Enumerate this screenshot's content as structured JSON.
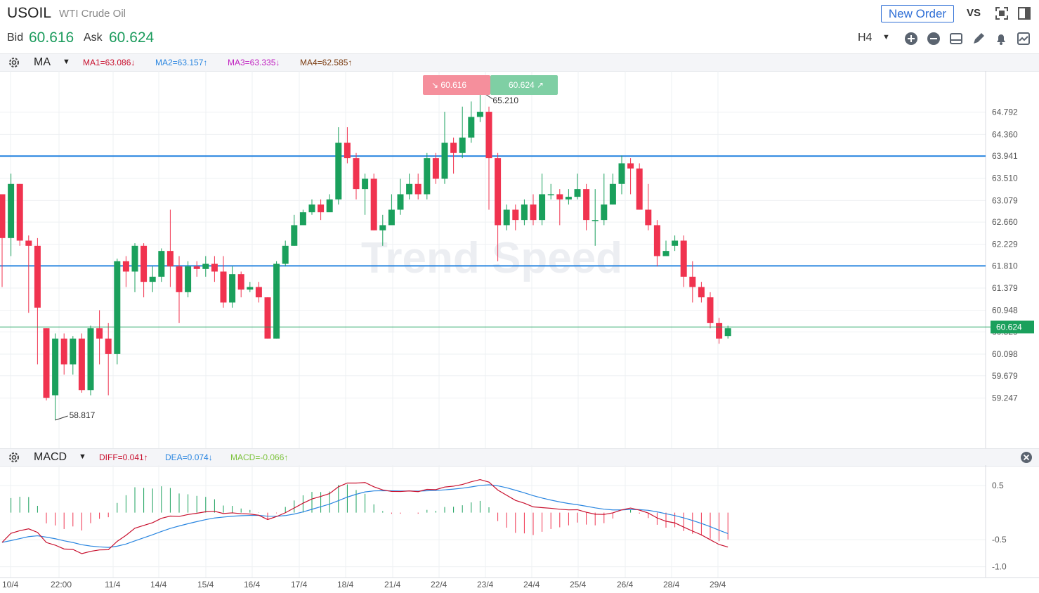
{
  "header": {
    "symbol": "USOIL",
    "symbol_name": "WTI Crude Oil",
    "bid_label": "Bid",
    "bid_value": "60.616",
    "ask_label": "Ask",
    "ask_value": "60.624",
    "new_order_label": "New Order",
    "vs_label": "VS",
    "timeframe": "H4"
  },
  "ma_bar": {
    "name": "MA",
    "ma1": "MA1=63.086↓",
    "ma2": "MA2=63.157↑",
    "ma3": "MA3=63.335↓",
    "ma4": "MA4=62.585↑",
    "colors": {
      "ma1": "#c8102e",
      "ma2": "#2a86e0",
      "ma3": "#c020c0",
      "ma4": "#7a3b10"
    }
  },
  "macd_bar": {
    "name": "MACD",
    "diff": "DIFF=0.041↑",
    "dea": "DEA=0.074↓",
    "macd": "MACD=-0.066↑",
    "colors": {
      "diff": "#c8102e",
      "dea": "#2a86e0",
      "macd": "#7cc23b"
    }
  },
  "price_axis": [
    "64.792",
    "64.360",
    "63.941",
    "63.510",
    "63.079",
    "62.660",
    "62.229",
    "61.810",
    "61.379",
    "60.948",
    "60.529",
    "60.098",
    "59.679",
    "59.247"
  ],
  "current_price": "60.624",
  "high_label": "65.210",
  "low_label": "58.817",
  "sell_box": "60.616",
  "buy_box": "60.624",
  "watermark": "Trend Speed",
  "macd_axis": [
    "0.5",
    "-0.5",
    "-1.0"
  ],
  "date_axis": [
    "10/4",
    "22:00",
    "11/4",
    "14/4",
    "15/4",
    "16/4",
    "17/4",
    "18/4",
    "21/4",
    "22/4",
    "23/4",
    "24/4",
    "25/4",
    "26/4",
    "28/4",
    "29/4"
  ],
  "colors": {
    "up": "#1aa05c",
    "down": "#f0334f",
    "hline": "#2a86e0",
    "current_line": "#1aa05c"
  },
  "chart_data": {
    "type": "candlestick",
    "timeframe": "H4",
    "horizontal_lines": [
      63.941,
      61.81
    ],
    "candles": [
      [
        63.2,
        62.35,
        62.7,
        61.4
      ],
      [
        62.35,
        63.4,
        63.6,
        62.0
      ],
      [
        63.4,
        62.3,
        63.4,
        62.2
      ],
      [
        62.3,
        62.2,
        62.4,
        60.9
      ],
      [
        62.2,
        61.0,
        62.35,
        59.9
      ],
      [
        60.6,
        59.25,
        60.6,
        59.2
      ],
      [
        59.3,
        60.4,
        60.5,
        58.82
      ],
      [
        60.4,
        59.9,
        60.5,
        59.7
      ],
      [
        59.9,
        60.4,
        60.45,
        59.7
      ],
      [
        60.4,
        59.4,
        60.5,
        59.35
      ],
      [
        59.4,
        60.6,
        60.65,
        59.3
      ],
      [
        60.6,
        60.4,
        60.95,
        59.9
      ],
      [
        60.4,
        60.1,
        60.7,
        59.3
      ],
      [
        60.1,
        61.9,
        61.95,
        59.9
      ],
      [
        61.9,
        61.7,
        62.0,
        61.4
      ],
      [
        61.7,
        62.2,
        62.25,
        61.3
      ],
      [
        62.2,
        61.5,
        62.25,
        61.2
      ],
      [
        61.5,
        61.6,
        61.8,
        61.3
      ],
      [
        61.6,
        62.1,
        62.15,
        61.5
      ],
      [
        62.1,
        61.8,
        62.9,
        61.4
      ],
      [
        61.8,
        61.3,
        62.0,
        60.7
      ],
      [
        61.3,
        61.8,
        61.9,
        61.2
      ],
      [
        61.8,
        61.75,
        61.9,
        61.6
      ],
      [
        61.75,
        61.85,
        62.0,
        61.6
      ],
      [
        61.85,
        61.7,
        62.0,
        61.5
      ],
      [
        61.7,
        61.1,
        62.0,
        61.0
      ],
      [
        61.1,
        61.65,
        61.8,
        61.0
      ],
      [
        61.65,
        61.35,
        61.7,
        61.2
      ],
      [
        61.35,
        61.4,
        61.5,
        61.3
      ],
      [
        61.4,
        61.2,
        61.5,
        61.1
      ],
      [
        61.2,
        60.4,
        61.2,
        60.4
      ],
      [
        60.4,
        61.85,
        61.9,
        60.4
      ],
      [
        61.85,
        62.2,
        62.3,
        61.8
      ],
      [
        62.2,
        62.6,
        62.8,
        62.2
      ],
      [
        62.6,
        62.85,
        62.9,
        62.6
      ],
      [
        62.85,
        63.0,
        63.1,
        62.8
      ],
      [
        63.0,
        62.85,
        63.1,
        62.7
      ],
      [
        62.85,
        63.1,
        63.2,
        62.9
      ],
      [
        63.1,
        64.2,
        64.5,
        63.0
      ],
      [
        64.2,
        63.9,
        64.5,
        63.8
      ],
      [
        63.9,
        63.3,
        64.0,
        63.1
      ],
      [
        63.3,
        63.5,
        63.6,
        62.8
      ],
      [
        63.5,
        62.5,
        63.6,
        62.5
      ],
      [
        62.5,
        62.6,
        62.8,
        62.2
      ],
      [
        62.6,
        62.9,
        63.2,
        62.6
      ],
      [
        62.9,
        63.2,
        63.5,
        62.8
      ],
      [
        63.2,
        63.4,
        63.6,
        63.1
      ],
      [
        63.4,
        63.2,
        63.6,
        63.1
      ],
      [
        63.2,
        63.9,
        64.0,
        63.1
      ],
      [
        63.9,
        63.5,
        64.0,
        63.4
      ],
      [
        63.5,
        64.2,
        64.8,
        63.4
      ],
      [
        64.2,
        64.0,
        64.3,
        63.6
      ],
      [
        64.0,
        64.3,
        64.9,
        63.9
      ],
      [
        64.3,
        64.7,
        65.0,
        64.2
      ],
      [
        64.7,
        64.8,
        65.21,
        64.6
      ],
      [
        64.8,
        63.9,
        64.9,
        62.9
      ],
      [
        63.9,
        62.6,
        64.0,
        61.9
      ],
      [
        62.6,
        62.9,
        63.0,
        62.5
      ],
      [
        62.9,
        62.7,
        63.0,
        62.5
      ],
      [
        62.7,
        63.0,
        63.1,
        62.6
      ],
      [
        63.0,
        62.7,
        63.2,
        62.6
      ],
      [
        62.7,
        63.2,
        63.6,
        62.6
      ],
      [
        63.2,
        63.2,
        63.4,
        63.1
      ],
      [
        63.2,
        63.1,
        63.3,
        62.6
      ],
      [
        63.1,
        63.15,
        63.3,
        63.0
      ],
      [
        63.15,
        63.3,
        63.6,
        63.1
      ],
      [
        63.3,
        62.7,
        63.4,
        62.5
      ],
      [
        62.7,
        62.7,
        63.3,
        62.2
      ],
      [
        62.7,
        63.0,
        63.6,
        62.6
      ],
      [
        63.0,
        63.4,
        63.6,
        63.0
      ],
      [
        63.4,
        63.8,
        63.95,
        63.2
      ],
      [
        63.8,
        63.7,
        63.9,
        63.2
      ],
      [
        63.7,
        62.9,
        63.8,
        62.9
      ],
      [
        62.9,
        62.6,
        63.4,
        62.5
      ],
      [
        62.6,
        62.0,
        62.7,
        61.8
      ],
      [
        62.0,
        62.1,
        62.3,
        62.0
      ],
      [
        62.2,
        62.3,
        62.4,
        62.1
      ],
      [
        62.3,
        61.6,
        62.4,
        61.4
      ],
      [
        61.6,
        61.4,
        61.9,
        61.1
      ],
      [
        61.4,
        61.2,
        61.5,
        61.1
      ],
      [
        61.2,
        60.7,
        61.3,
        60.6
      ],
      [
        60.7,
        60.4,
        60.8,
        60.3
      ],
      [
        60.45,
        60.6,
        60.65,
        60.4
      ]
    ],
    "macd": {
      "ylim": [
        -1.2,
        0.8
      ],
      "ticks": [
        0.5,
        -0.5,
        -1.0
      ]
    }
  }
}
